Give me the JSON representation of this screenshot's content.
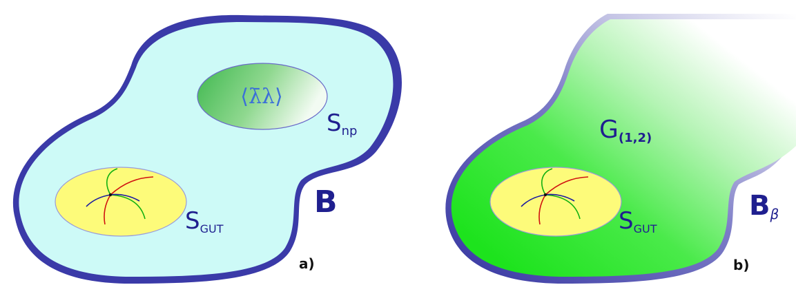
{
  "panels": [
    {
      "id": "a",
      "panel_label": "a)",
      "region_label_main": "B",
      "region_label_sub": "",
      "gut_label_main": "S",
      "gut_label_sub": "GUT",
      "np_label_main": "S",
      "np_label_sub": "np",
      "np_symbol": "⟨λ̄λ⟩",
      "region_fill": "#cdfaf7",
      "border_color": "#3a3aa8"
    },
    {
      "id": "b",
      "panel_label": "b)",
      "region_label_main": "B",
      "region_label_sub": "β",
      "gut_label_main": "S",
      "gut_label_sub": "GUT",
      "group_label_main": "G",
      "group_label_sub": "(1,2)",
      "region_fill": "#22dd22",
      "border_color": "#3a3aa8"
    }
  ],
  "colors": {
    "gut_fill": "#fdfb7a",
    "np_fill": "#5ac85a",
    "curve_red": "#d01010",
    "curve_green": "#10b010",
    "curve_blue": "#1a1aa0"
  }
}
